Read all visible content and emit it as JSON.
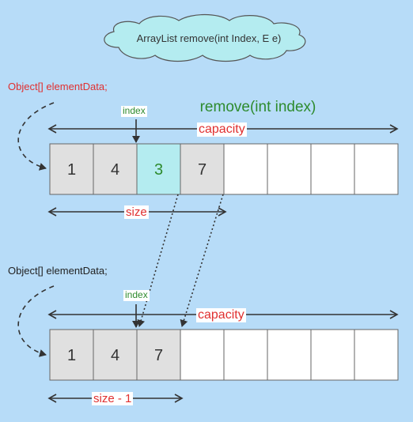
{
  "title": "ArrayList remove(int Index, E e)",
  "heading": "remove(int index)",
  "colors": {
    "background": "#b7dcf8",
    "cloud": "#b4ecf0",
    "cell_filled": "#e0e0e0",
    "cell_highlight": "#b4ecf0",
    "cell_empty": "#ffffff",
    "red": "#e03030",
    "green": "#2e8b2e",
    "dark": "#333333"
  },
  "before": {
    "pointer_label": "Object[] elementData;",
    "index_label": "index",
    "capacity_label": "capacity",
    "size_label": "size",
    "cells": [
      "1",
      "4",
      "3",
      "7",
      "",
      "",
      "",
      ""
    ],
    "highlight_cell": 2
  },
  "after": {
    "pointer_label": "Object[] elementData;",
    "index_label": "index",
    "capacity_label": "capacity",
    "size_label": "size - 1",
    "cells": [
      "1",
      "4",
      "7",
      "",
      "",
      "",
      "",
      ""
    ]
  }
}
